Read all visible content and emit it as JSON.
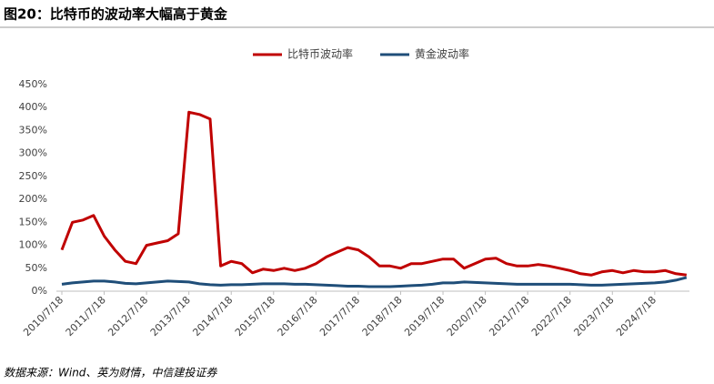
{
  "chart_data": {
    "type": "line",
    "title": "图20：比特币的波动率大幅高于黄金",
    "source": "数据来源：Wind、英为财情，中信建投证券",
    "categories": [
      "2010/7/18",
      null,
      null,
      null,
      "2011/7/18",
      null,
      null,
      null,
      "2012/7/18",
      null,
      null,
      null,
      "2013/7/18",
      null,
      null,
      null,
      "2014/7/18",
      null,
      null,
      null,
      "2015/7/18",
      null,
      null,
      null,
      "2016/7/18",
      null,
      null,
      null,
      "2017/7/18",
      null,
      null,
      null,
      "2018/7/18",
      null,
      null,
      null,
      "2019/7/18",
      null,
      null,
      null,
      "2020/7/18",
      null,
      null,
      null,
      "2021/7/18",
      null,
      null,
      null,
      "2022/7/18",
      null,
      null,
      null,
      "2023/7/18",
      null,
      null,
      null,
      "2024/7/18",
      null,
      null,
      null
    ],
    "series": [
      {
        "name": "比特币波动率",
        "color": "#c00000",
        "values": [
          90,
          150,
          155,
          165,
          120,
          90,
          65,
          60,
          100,
          105,
          110,
          125,
          390,
          385,
          375,
          55,
          65,
          60,
          40,
          48,
          45,
          50,
          45,
          50,
          60,
          75,
          85,
          95,
          90,
          75,
          55,
          55,
          50,
          60,
          60,
          65,
          70,
          70,
          50,
          60,
          70,
          72,
          60,
          55,
          55,
          58,
          55,
          50,
          45,
          38,
          35,
          42,
          45,
          40,
          45,
          42,
          42,
          45,
          38,
          35
        ]
      },
      {
        "name": "黄金波动率",
        "color": "#1f4e79",
        "values": [
          15,
          18,
          20,
          22,
          22,
          20,
          17,
          16,
          18,
          20,
          22,
          21,
          20,
          16,
          14,
          13,
          14,
          14,
          15,
          16,
          16,
          16,
          15,
          15,
          14,
          13,
          12,
          11,
          11,
          10,
          10,
          10,
          11,
          12,
          13,
          15,
          18,
          18,
          20,
          19,
          18,
          17,
          16,
          15,
          15,
          15,
          15,
          15,
          15,
          14,
          13,
          13,
          14,
          15,
          16,
          17,
          18,
          20,
          24,
          30
        ]
      }
    ],
    "ylim": [
      0,
      450
    ],
    "yticks": [
      {
        "value": 0,
        "label": "0%"
      },
      {
        "value": 50,
        "label": "50%"
      },
      {
        "value": 100,
        "label": "100%"
      },
      {
        "value": 150,
        "label": "150%"
      },
      {
        "value": 200,
        "label": "200%"
      },
      {
        "value": 250,
        "label": "250%"
      },
      {
        "value": 300,
        "label": "300%"
      },
      {
        "value": 350,
        "label": "350%"
      },
      {
        "value": 400,
        "label": "400%"
      },
      {
        "value": 450,
        "label": "450%"
      }
    ],
    "grid": false
  }
}
